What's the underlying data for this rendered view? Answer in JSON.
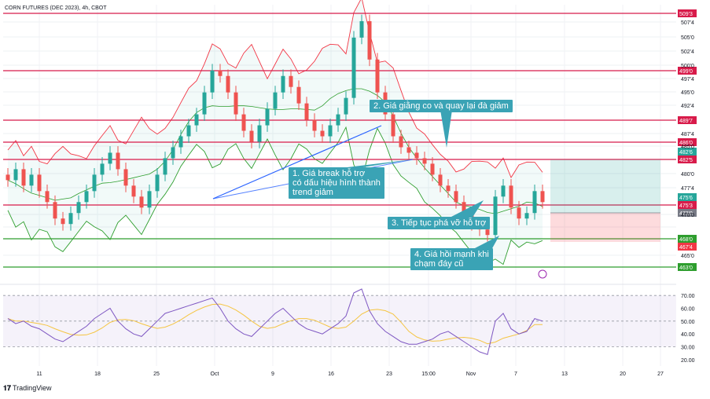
{
  "chart_data": {
    "type": "line",
    "title": "CORN FUTURES (DEC 2023), 4h, CBOT",
    "price_axis": {
      "ticks": [
        "507'4",
        "505'0",
        "502'4",
        "500'0",
        "497'4",
        "495'0",
        "492'4",
        "487'4",
        "485'0",
        "480'0",
        "477'4",
        "470'0",
        "465'0"
      ],
      "levels": [
        {
          "label": "509'3",
          "color": "#d81b4a"
        },
        {
          "label": "499'0",
          "color": "#d81b4a"
        },
        {
          "label": "489'7",
          "color": "#d81b4a"
        },
        {
          "label": "486'0",
          "color": "#d81b4a"
        },
        {
          "label": "482'6",
          "color": "#26a69a"
        },
        {
          "label": "482'5",
          "color": "#d81b4a"
        },
        {
          "label": "475'6",
          "color": "#26a69a"
        },
        {
          "label": "475'3",
          "color": "#d81b4a"
        },
        {
          "label": "473'0",
          "color": "#787b86"
        },
        {
          "label": "468'0",
          "color": "#2e9e2e"
        },
        {
          "label": "467'4",
          "color": "#f23645"
        },
        {
          "label": "463'0",
          "color": "#2e9e2e"
        }
      ]
    },
    "rsi_axis": {
      "ticks": [
        "70.00",
        "60.00",
        "50.00",
        "40.00",
        "30.00",
        "20.00"
      ],
      "upper": 70,
      "lower": 30
    },
    "x_tick_labels": [
      "11",
      "18",
      "25",
      "Oct",
      "9",
      "16",
      "23",
      "15:00",
      "Nov",
      "7",
      "13",
      "20",
      "27"
    ],
    "close_series": [
      478,
      480,
      477,
      479,
      476,
      474,
      471,
      470,
      472,
      474,
      476,
      479,
      481,
      483,
      480,
      477,
      475,
      473,
      476,
      479,
      482,
      484,
      486,
      488,
      490,
      494,
      498,
      497,
      494,
      490,
      487,
      485,
      488,
      491,
      494,
      497,
      495,
      492,
      489,
      487,
      486,
      488,
      490,
      493,
      504,
      507,
      500,
      494,
      490,
      486,
      484,
      483,
      482,
      481,
      479,
      477,
      476,
      474,
      472,
      470,
      469,
      468,
      475,
      477,
      473,
      471,
      472,
      476,
      474
    ],
    "rsi_series": [
      52,
      48,
      50,
      46,
      44,
      40,
      36,
      34,
      38,
      42,
      46,
      52,
      56,
      60,
      50,
      44,
      40,
      38,
      44,
      50,
      56,
      58,
      60,
      62,
      64,
      66,
      68,
      60,
      50,
      44,
      40,
      38,
      44,
      50,
      56,
      60,
      54,
      48,
      44,
      42,
      40,
      44,
      48,
      54,
      72,
      75,
      58,
      48,
      42,
      38,
      34,
      32,
      32,
      34,
      36,
      40,
      42,
      38,
      34,
      30,
      26,
      24,
      50,
      56,
      44,
      40,
      42,
      52,
      50
    ],
    "annotations": [
      {
        "lines": [
          "1. Giá break hỗ trợ",
          "có dấu hiệu hình thành",
          "trend giảm"
        ]
      },
      {
        "lines": [
          "2. Giá giằng co và quay lại đà giảm"
        ]
      },
      {
        "lines": [
          "3. Tiếp tục phá vỡ hỗ trợ"
        ]
      },
      {
        "lines": [
          "4. Giá hồi mạnh khi",
          "chạm đáy cũ"
        ]
      }
    ],
    "grid": true
  },
  "footer": {
    "brand": "TradingView"
  },
  "colors": {
    "up": "#26a69a",
    "down": "#ef5350",
    "resistance": "#d81b4a",
    "support": "#2e9e2e",
    "trendline": "#2962ff",
    "bollinger": "#2e9e2e",
    "rsi": "#7e57c2",
    "rsi_ma": "#f5c542",
    "callout": "#3aa3b5"
  }
}
